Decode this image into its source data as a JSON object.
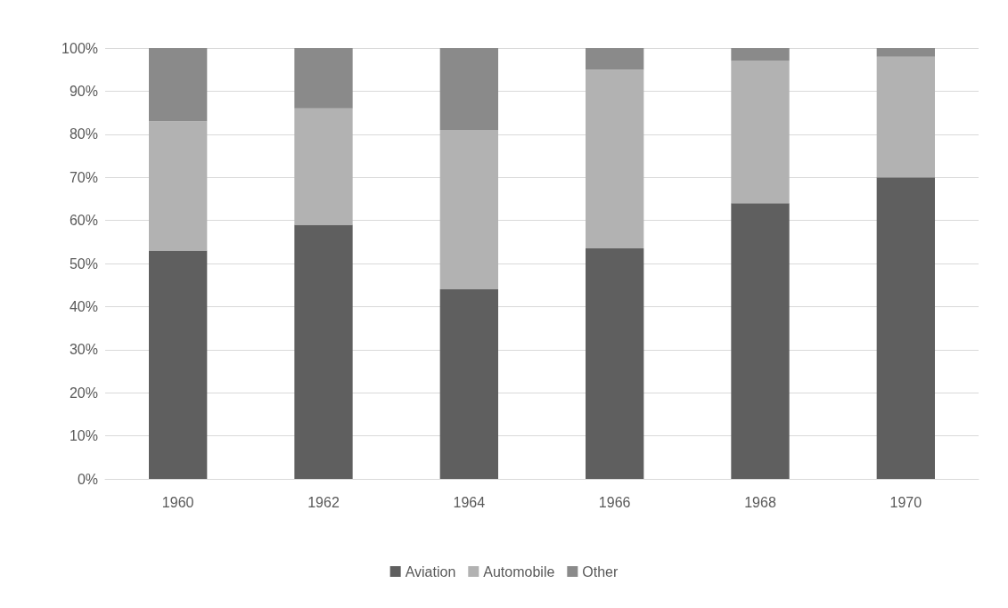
{
  "chart_data": {
    "type": "bar",
    "stacked": true,
    "categories": [
      "1960",
      "1962",
      "1964",
      "1966",
      "1968",
      "1970"
    ],
    "series": [
      {
        "name": "Aviation",
        "color": "#5f5f5f",
        "values": [
          53,
          59,
          44,
          53.5,
          64,
          70
        ]
      },
      {
        "name": "Automobile",
        "color": "#b2b2b2",
        "values": [
          30,
          27,
          37,
          41.5,
          33,
          28
        ]
      },
      {
        "name": "Other",
        "color": "#8a8a8a",
        "values": [
          17,
          14,
          19,
          5,
          3,
          2
        ]
      }
    ],
    "ylim": [
      0,
      100
    ],
    "yticks": [
      {
        "value": 0,
        "label": "0%"
      },
      {
        "value": 10,
        "label": "10%"
      },
      {
        "value": 20,
        "label": "20%"
      },
      {
        "value": 30,
        "label": "30%"
      },
      {
        "value": 40,
        "label": "40%"
      },
      {
        "value": 50,
        "label": "50%"
      },
      {
        "value": 60,
        "label": "60%"
      },
      {
        "value": 70,
        "label": "70%"
      },
      {
        "value": 80,
        "label": "80%"
      },
      {
        "value": 90,
        "label": "90%"
      },
      {
        "value": 100,
        "label": "100%"
      }
    ],
    "grid": "y",
    "legend": "bottom"
  }
}
